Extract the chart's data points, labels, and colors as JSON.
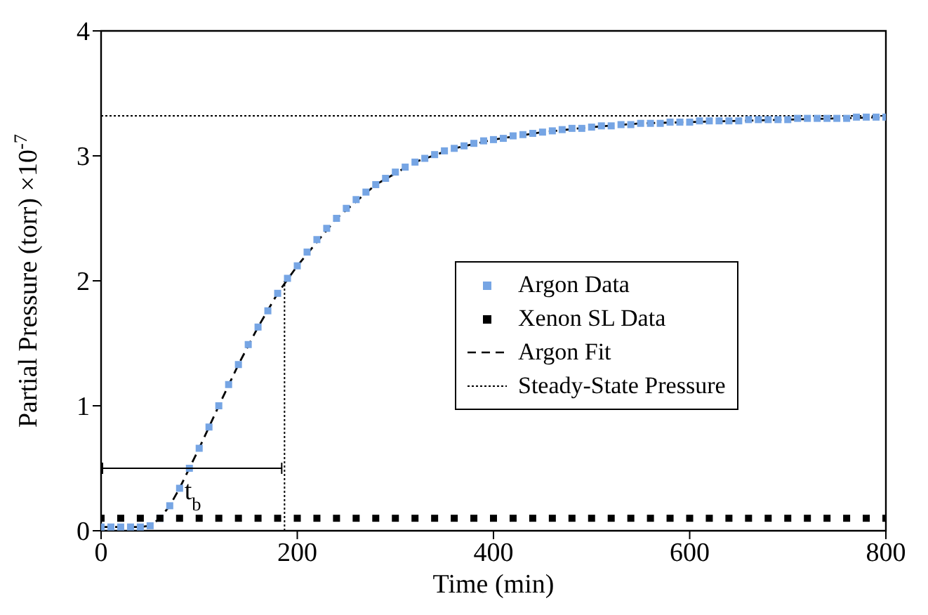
{
  "chart_data": {
    "type": "scatter",
    "xlabel": "Time (min)",
    "ylabel": "Partial Pressure (torr) ×10$^{-7}$",
    "xlim": [
      0,
      800
    ],
    "xticks": [
      0,
      200,
      400,
      600,
      800
    ],
    "ylim": [
      0,
      4
    ],
    "yticks": [
      0,
      1,
      2,
      3,
      4
    ],
    "legend": "right",
    "annotations": [
      {
        "text": "t$_{b}$",
        "x": 93.5,
        "y": 0.5
      }
    ],
    "series": [
      {
        "name": "Argon Data",
        "marker": "square",
        "color": "#76a5e4",
        "x": [
          0,
          10,
          20,
          30,
          40,
          50,
          60,
          70,
          80,
          90,
          100,
          110,
          120,
          130,
          140,
          150,
          160,
          170,
          180,
          190,
          200,
          210,
          220,
          230,
          240,
          250,
          260,
          270,
          280,
          290,
          300,
          310,
          320,
          330,
          340,
          350,
          360,
          370,
          380,
          390,
          400,
          410,
          420,
          430,
          440,
          450,
          460,
          470,
          480,
          490,
          500,
          510,
          520,
          530,
          540,
          550,
          560,
          570,
          580,
          590,
          600,
          610,
          620,
          630,
          640,
          650,
          660,
          670,
          680,
          690,
          700,
          710,
          720,
          730,
          740,
          750,
          760,
          770,
          780,
          790,
          800
        ],
        "values": [
          0.03,
          0.03,
          0.03,
          0.03,
          0.03,
          0.04,
          0.1,
          0.2,
          0.34,
          0.5,
          0.66,
          0.83,
          1.0,
          1.17,
          1.33,
          1.49,
          1.63,
          1.76,
          1.9,
          2.02,
          2.12,
          2.23,
          2.33,
          2.42,
          2.5,
          2.58,
          2.65,
          2.71,
          2.77,
          2.82,
          2.87,
          2.91,
          2.95,
          2.98,
          3.01,
          3.04,
          3.06,
          3.08,
          3.1,
          3.12,
          3.13,
          3.14,
          3.16,
          3.17,
          3.18,
          3.19,
          3.2,
          3.21,
          3.22,
          3.22,
          3.23,
          3.24,
          3.24,
          3.25,
          3.25,
          3.26,
          3.26,
          3.26,
          3.27,
          3.27,
          3.27,
          3.28,
          3.28,
          3.28,
          3.28,
          3.28,
          3.29,
          3.29,
          3.29,
          3.29,
          3.29,
          3.3,
          3.3,
          3.3,
          3.3,
          3.3,
          3.3,
          3.31,
          3.31,
          3.31,
          3.31
        ]
      },
      {
        "name": "Xenon SL Data",
        "marker": "square",
        "color": "#000000",
        "x": [
          0,
          20,
          40,
          60,
          80,
          100,
          120,
          140,
          160,
          180,
          200,
          220,
          240,
          260,
          280,
          300,
          320,
          340,
          360,
          380,
          400,
          420,
          440,
          460,
          480,
          500,
          520,
          540,
          560,
          580,
          600,
          620,
          640,
          660,
          680,
          700,
          720,
          740,
          760,
          780,
          800
        ],
        "values": [
          0.1,
          0.1,
          0.1,
          0.1,
          0.1,
          0.1,
          0.1,
          0.1,
          0.1,
          0.1,
          0.1,
          0.1,
          0.1,
          0.1,
          0.1,
          0.1,
          0.1,
          0.1,
          0.1,
          0.1,
          0.1,
          0.1,
          0.1,
          0.1,
          0.1,
          0.1,
          0.1,
          0.1,
          0.1,
          0.1,
          0.1,
          0.1,
          0.1,
          0.1,
          0.1,
          0.1,
          0.1,
          0.1,
          0.1,
          0.1,
          0.1
        ]
      },
      {
        "name": "Argon Fit",
        "type": "line",
        "line_style": "dashed",
        "marker": "none",
        "color": "#000000",
        "x": [
          0,
          20,
          40,
          50,
          60,
          70,
          80,
          90,
          100,
          120,
          140,
          160,
          180,
          200,
          240,
          280,
          320,
          360,
          400,
          450,
          500,
          550,
          600,
          650,
          700,
          750,
          800
        ],
        "values": [
          0.03,
          0.03,
          0.03,
          0.04,
          0.1,
          0.2,
          0.34,
          0.5,
          0.66,
          1.0,
          1.33,
          1.63,
          1.9,
          2.12,
          2.5,
          2.77,
          2.95,
          3.06,
          3.13,
          3.19,
          3.23,
          3.26,
          3.27,
          3.28,
          3.29,
          3.3,
          3.31
        ]
      },
      {
        "name": "Steady-State Pressure",
        "type": "line",
        "line_style": "dotted",
        "marker": "none",
        "color": "#000000",
        "x": [
          0,
          800
        ],
        "values": [
          3.32,
          3.32
        ]
      },
      {
        "type": "line",
        "line_style": "dotted",
        "marker": "none",
        "color": "#000000",
        "x": [
          187,
          187
        ],
        "values": [
          0,
          2.0
        ]
      }
    ]
  }
}
